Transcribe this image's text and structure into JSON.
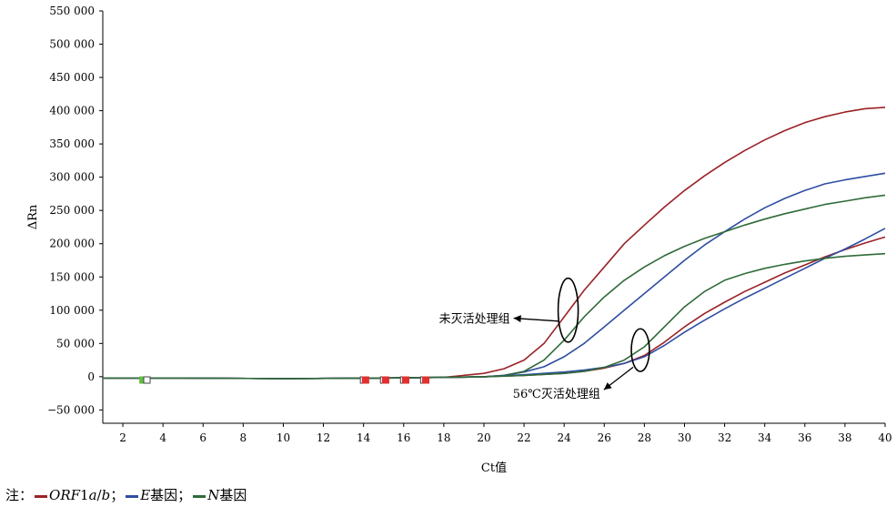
{
  "chart_data": {
    "type": "line",
    "xlabel": "Ct值",
    "ylabel": "ΔRn",
    "xlim": [
      1,
      40
    ],
    "ylim": [
      -70000,
      550000
    ],
    "x_ticks": [
      2,
      4,
      6,
      8,
      10,
      12,
      14,
      16,
      18,
      20,
      22,
      24,
      26,
      28,
      30,
      32,
      34,
      36,
      38,
      40
    ],
    "x_tick_labels": [
      "2",
      "4",
      "6",
      "8",
      "10",
      "12",
      "14",
      "16",
      "18",
      "20",
      "22",
      "24",
      "26",
      "28",
      "30",
      "32",
      "34",
      "36",
      "38",
      "40"
    ],
    "y_ticks": [
      -50000,
      0,
      50000,
      100000,
      150000,
      200000,
      250000,
      300000,
      350000,
      400000,
      450000,
      500000,
      550000
    ],
    "y_tick_labels": [
      "−50 000",
      "0",
      "50 000",
      "100 000",
      "150 000",
      "200 000",
      "250 000",
      "300 000",
      "350 000",
      "400 000",
      "450 000",
      "500 000",
      "550 000"
    ],
    "grid": false,
    "series": [
      {
        "name": "ORF1a/b",
        "group": "未灭活处理组",
        "color": "#9b2226",
        "x": [
          1,
          5,
          10,
          15,
          18,
          20,
          21,
          22,
          23,
          24,
          25,
          26,
          27,
          28,
          29,
          30,
          31,
          32,
          33,
          34,
          35,
          36,
          37,
          38,
          39,
          40
        ],
        "y": [
          -2000,
          -2000,
          -3000,
          -2000,
          -1000,
          5000,
          12000,
          25000,
          50000,
          90000,
          130000,
          165000,
          200000,
          228000,
          255000,
          280000,
          302000,
          322000,
          340000,
          356000,
          370000,
          382000,
          391000,
          398000,
          403000,
          405000
        ]
      },
      {
        "name": "E",
        "group": "未灭活处理组",
        "color": "#2e4ea1",
        "x": [
          1,
          5,
          10,
          15,
          18,
          20,
          21,
          22,
          23,
          24,
          25,
          26,
          27,
          28,
          29,
          30,
          31,
          32,
          33,
          34,
          35,
          36,
          37,
          38,
          39,
          40
        ],
        "y": [
          -2000,
          -2000,
          -3000,
          -2000,
          -1000,
          0,
          2000,
          7000,
          15000,
          30000,
          50000,
          75000,
          100000,
          125000,
          150000,
          175000,
          198000,
          218000,
          237000,
          254000,
          268000,
          280000,
          290000,
          296000,
          301000,
          306000
        ]
      },
      {
        "name": "N",
        "group": "未灭活处理组",
        "color": "#2f6b3a",
        "x": [
          1,
          5,
          10,
          15,
          18,
          20,
          21,
          22,
          23,
          24,
          25,
          26,
          27,
          28,
          29,
          30,
          31,
          32,
          33,
          34,
          35,
          36,
          37,
          38,
          39,
          40
        ],
        "y": [
          -2000,
          -2000,
          -3000,
          -2000,
          -1000,
          0,
          2000,
          8000,
          25000,
          55000,
          90000,
          120000,
          145000,
          165000,
          182000,
          196000,
          208000,
          218000,
          228000,
          237000,
          245000,
          252000,
          259000,
          264000,
          269000,
          273000
        ]
      },
      {
        "name": "ORF1a/b",
        "group": "56℃灭活处理组",
        "color": "#9b2226",
        "x": [
          1,
          5,
          10,
          15,
          18,
          20,
          22,
          24,
          25,
          26,
          27,
          28,
          29,
          30,
          31,
          32,
          33,
          34,
          35,
          36,
          37,
          38,
          39,
          40
        ],
        "y": [
          -2000,
          -2000,
          -3000,
          -2000,
          -1000,
          0,
          2000,
          5000,
          8000,
          13000,
          20000,
          32000,
          52000,
          75000,
          95000,
          112000,
          128000,
          142000,
          156000,
          168000,
          180000,
          191000,
          201000,
          210000
        ]
      },
      {
        "name": "E",
        "group": "56℃灭活处理组",
        "color": "#2e4ea1",
        "x": [
          1,
          5,
          10,
          15,
          18,
          20,
          22,
          24,
          25,
          26,
          27,
          28,
          29,
          30,
          31,
          32,
          33,
          34,
          35,
          36,
          37,
          38,
          39,
          40
        ],
        "y": [
          -2000,
          -2000,
          -3000,
          -2000,
          -1000,
          0,
          3000,
          7000,
          10000,
          14000,
          20000,
          30000,
          47000,
          67000,
          85000,
          102000,
          118000,
          133000,
          148000,
          163000,
          178000,
          192000,
          207000,
          223000
        ]
      },
      {
        "name": "N",
        "group": "56℃灭活处理组",
        "color": "#2f6b3a",
        "x": [
          1,
          5,
          10,
          15,
          18,
          20,
          22,
          24,
          25,
          26,
          27,
          28,
          29,
          30,
          31,
          32,
          33,
          34,
          35,
          36,
          37,
          38,
          39,
          40
        ],
        "y": [
          -2000,
          -2000,
          -3000,
          -2000,
          -1000,
          0,
          2000,
          5000,
          8000,
          14000,
          25000,
          45000,
          75000,
          105000,
          128000,
          145000,
          155000,
          163000,
          169000,
          174000,
          178000,
          181000,
          183000,
          185000
        ]
      }
    ],
    "markers": [
      {
        "x": 3,
        "y": -5000,
        "color": "#5fbf3f",
        "filled": true
      },
      {
        "x": 3.2,
        "y": -5000,
        "color": "#ffffff",
        "filled": false
      },
      {
        "x": 14,
        "y": -5000,
        "color": "#ffffff",
        "filled": false
      },
      {
        "x": 14.1,
        "y": -5000,
        "color": "#e03030",
        "filled": true
      },
      {
        "x": 15,
        "y": -5000,
        "color": "#ffffff",
        "filled": false
      },
      {
        "x": 15.1,
        "y": -5000,
        "color": "#e03030",
        "filled": true
      },
      {
        "x": 16,
        "y": -5000,
        "color": "#ffffff",
        "filled": false
      },
      {
        "x": 16.1,
        "y": -5000,
        "color": "#e03030",
        "filled": true
      },
      {
        "x": 17,
        "y": -5000,
        "color": "#ffffff",
        "filled": false
      },
      {
        "x": 17.1,
        "y": -5000,
        "color": "#e03030",
        "filled": true
      }
    ],
    "annotations": [
      {
        "text": "未灭活处理组",
        "ellipse_center": [
          24.2,
          100000
        ],
        "ellipse_r": [
          0.5,
          48000
        ],
        "label_x": 21.3,
        "label_y": 88000
      },
      {
        "text": "56℃灭活处理组",
        "ellipse_center": [
          27.8,
          40000
        ],
        "ellipse_r": [
          0.45,
          32000
        ],
        "label_x": 25.8,
        "label_y": -25000
      }
    ]
  },
  "note": {
    "prefix": "注：",
    "items": [
      {
        "italic": "ORF",
        "plain_mid": "1",
        "italic2": "a",
        "plain2": "/",
        "italic3": "b",
        "sep": "；",
        "color": "#9b2226"
      },
      {
        "italic": "E",
        "text": "基因",
        "sep": "；",
        "color": "#2e4ea1"
      },
      {
        "italic": "N",
        "text": "基因",
        "sep": "",
        "color": "#2f6b3a"
      }
    ]
  }
}
